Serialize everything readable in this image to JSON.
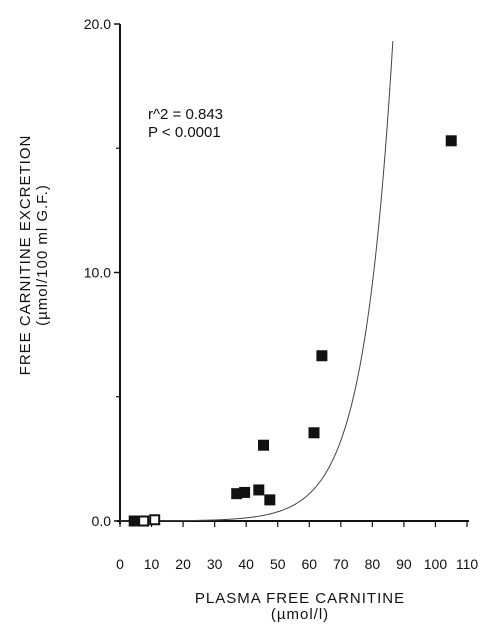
{
  "chart_data": {
    "type": "scatter",
    "xlabel": "PLASMA FREE CARNITINE",
    "xlabel_unit": "(µmol/l)",
    "ylabel": "FREE CARNITINE EXCRETION",
    "ylabel_unit": "(µmol/100 ml G.F.)",
    "xlim": [
      0,
      110
    ],
    "ylim": [
      0,
      20
    ],
    "x_ticks": [
      "0",
      "10",
      "20",
      "30",
      "40",
      "50",
      "60",
      "70",
      "80",
      "90",
      "100",
      "110"
    ],
    "y_ticks": [
      "0.0",
      "10.0",
      "20.0"
    ],
    "y_tick_values": [
      0,
      10,
      20
    ],
    "grid": false,
    "annotation": [
      "r^2 = 0.843",
      "P < 0.0001"
    ],
    "series": [
      {
        "marker": "filled-square",
        "points": [
          [
            4.5,
            0.0
          ],
          [
            37,
            1.1
          ],
          [
            39.5,
            1.15
          ],
          [
            44,
            1.25
          ],
          [
            45.5,
            3.05
          ],
          [
            47.5,
            0.85
          ],
          [
            61.5,
            3.55
          ],
          [
            64,
            6.65
          ],
          [
            105,
            15.3
          ]
        ]
      },
      {
        "marker": "open-square",
        "points": [
          [
            7.5,
            0.0
          ],
          [
            11,
            0.05
          ]
        ]
      }
    ],
    "fit_curve": {
      "type": "exponential",
      "a": 0.00165,
      "b": 0.1083
    }
  }
}
